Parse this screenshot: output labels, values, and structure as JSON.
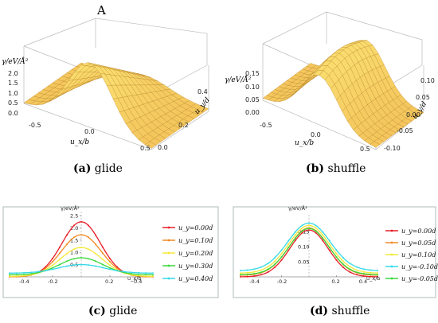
{
  "captions": {
    "a": {
      "letter": "(a)",
      "text": " glide"
    },
    "b": {
      "letter": "(b)",
      "text": " shuffle"
    },
    "c": {
      "letter": "(c)",
      "text": " glide"
    },
    "d": {
      "letter": "(d)",
      "text": " shuffle"
    }
  },
  "chart_data": [
    {
      "type": "surface",
      "panel_label": "A",
      "zlabel": "γ/eV/Å²",
      "xlabel": "u_x/b",
      "ylabel": "u_y/d",
      "z_ticks": [
        "2.0",
        "1.5",
        "1.0",
        "0.5",
        "0.0"
      ],
      "x_ticks": [
        "-0.5",
        "0.0",
        "0.5"
      ],
      "y_ticks": [
        "0.0",
        "0.2",
        "0.4"
      ],
      "colors": {
        "surface": "#f5c260",
        "grid": "#b07a20"
      }
    },
    {
      "type": "surface",
      "zlabel": "γ/eV/Å²",
      "xlabel": "u_x/b",
      "ylabel": "u_y/d",
      "z_ticks": [
        "0.15",
        "0.10",
        "0.05",
        "0.00"
      ],
      "x_ticks": [
        "-0.5",
        "0.0",
        "0.5"
      ],
      "y_ticks": [
        "-0.10",
        "-0.05",
        "0.00",
        "0.05",
        "0.10"
      ],
      "colors": {
        "surface": "#f5c260",
        "grid": "#b07a20"
      }
    },
    {
      "type": "line",
      "xlabel": "u_x/b",
      "ylabel": "γ/eV/Å²",
      "xlim": [
        -0.5,
        0.5
      ],
      "ylim": [
        0,
        2.6
      ],
      "x_ticks": [
        "-0.4",
        "-0.2",
        "0.2",
        "0.4"
      ],
      "y_ticks": [
        "0.5",
        "1.0",
        "1.5",
        "2.0",
        "2.5"
      ],
      "series": [
        {
          "name": "u_y=0.00d",
          "peak": 2.25,
          "base": 0.0,
          "sigma": 0.135,
          "color": "#e8202a"
        },
        {
          "name": "u_y=0.10d",
          "peak": 1.72,
          "base": 0.0,
          "sigma": 0.14,
          "color": "#f08a24"
        },
        {
          "name": "u_y=0.20d",
          "peak": 1.2,
          "base": 0.02,
          "sigma": 0.145,
          "color": "#f4e838"
        },
        {
          "name": "u_y=0.30d",
          "peak": 0.78,
          "base": 0.08,
          "sigma": 0.15,
          "color": "#3ad93a"
        },
        {
          "name": "u_y=0.40d",
          "peak": 0.5,
          "base": 0.15,
          "sigma": 0.16,
          "color": "#35d8e8"
        }
      ]
    },
    {
      "type": "line",
      "xlabel": "u_x/b",
      "ylabel": "γ/eV/Å²",
      "xlim": [
        -0.5,
        0.5
      ],
      "ylim": [
        0,
        0.2
      ],
      "x_ticks": [
        "-0.4",
        "-0.2",
        "0.2",
        "0.4"
      ],
      "y_ticks": [
        "0.05",
        "0.10",
        "0.15"
      ],
      "series": [
        {
          "name": "u_y=0.00d",
          "peak": 0.155,
          "base": 0.0,
          "sigma": 0.14,
          "color": "#e8202a"
        },
        {
          "name": "u_y=0.05d",
          "peak": 0.162,
          "base": 0.005,
          "sigma": 0.145,
          "color": "#f08a24"
        },
        {
          "name": "u_y=0.10d",
          "peak": 0.17,
          "base": 0.012,
          "sigma": 0.15,
          "color": "#f4e838"
        },
        {
          "name": "u_y=-0.10d",
          "peak": 0.178,
          "base": 0.02,
          "sigma": 0.155,
          "color": "#35d8e8"
        },
        {
          "name": "u_y=-0.05d",
          "peak": 0.16,
          "base": 0.007,
          "sigma": 0.145,
          "color": "#3ad93a"
        }
      ]
    }
  ]
}
